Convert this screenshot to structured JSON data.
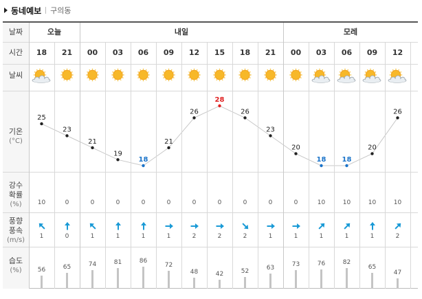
{
  "header": {
    "title": "동네예보",
    "location": "구의동"
  },
  "labels": {
    "date": "날짜",
    "time": "시간",
    "weather": "날씨",
    "temp": "기온",
    "temp_unit": "(°C)",
    "precip_1": "강수",
    "precip_2": "확률",
    "precip_unit": "(%)",
    "wind_1": "풍향",
    "wind_2": "풍속",
    "wind_unit": "(m/s)",
    "hum": "습도",
    "hum_unit": "(%)"
  },
  "days": [
    "오늘",
    "내일",
    "모레"
  ],
  "forecast": [
    {
      "time": "18",
      "icon": "partly-cloudy-icon",
      "temp": 25,
      "precip": 10,
      "wind_dir": "SE",
      "wind_speed": 1,
      "humidity": 56
    },
    {
      "time": "21",
      "icon": "sunny-icon",
      "temp": 23,
      "precip": 0,
      "wind_dir": "S",
      "wind_speed": 0,
      "humidity": 65
    },
    {
      "time": "00",
      "icon": "sunny-icon",
      "temp": 21,
      "precip": 0,
      "wind_dir": "SE",
      "wind_speed": 1,
      "humidity": 74
    },
    {
      "time": "03",
      "icon": "sunny-icon",
      "temp": 19,
      "precip": 0,
      "wind_dir": "S",
      "wind_speed": 1,
      "humidity": 81
    },
    {
      "time": "06",
      "icon": "sunny-icon",
      "temp": 18,
      "precip": 0,
      "wind_dir": "S",
      "wind_speed": 1,
      "humidity": 86
    },
    {
      "time": "09",
      "icon": "sunny-icon",
      "temp": 21,
      "precip": 0,
      "wind_dir": "W",
      "wind_speed": 1,
      "humidity": 72
    },
    {
      "time": "12",
      "icon": "sunny-icon",
      "temp": 26,
      "precip": 0,
      "wind_dir": "W",
      "wind_speed": 2,
      "humidity": 48
    },
    {
      "time": "15",
      "icon": "sunny-icon",
      "temp": 28,
      "precip": 0,
      "wind_dir": "W",
      "wind_speed": 2,
      "humidity": 42
    },
    {
      "time": "18",
      "icon": "sunny-icon",
      "temp": 26,
      "precip": 0,
      "wind_dir": "NW",
      "wind_speed": 2,
      "humidity": 52
    },
    {
      "time": "21",
      "icon": "sunny-icon",
      "temp": 23,
      "precip": 0,
      "wind_dir": "W",
      "wind_speed": 1,
      "humidity": 63
    },
    {
      "time": "00",
      "icon": "sunny-icon",
      "temp": 20,
      "precip": 0,
      "wind_dir": "W",
      "wind_speed": 1,
      "humidity": 73
    },
    {
      "time": "03",
      "icon": "partly-cloudy-icon",
      "temp": 18,
      "precip": 10,
      "wind_dir": "SW",
      "wind_speed": 1,
      "humidity": 76
    },
    {
      "time": "06",
      "icon": "partly-cloudy-icon",
      "temp": 18,
      "precip": 10,
      "wind_dir": "SW",
      "wind_speed": 1,
      "humidity": 82
    },
    {
      "time": "09",
      "icon": "partly-cloudy-icon",
      "temp": 20,
      "precip": 10,
      "wind_dir": "S",
      "wind_speed": 1,
      "humidity": 65
    },
    {
      "time": "12",
      "icon": "partly-cloudy-icon",
      "temp": 26,
      "precip": 10,
      "wind_dir": "SW",
      "wind_speed": 2,
      "humidity": 47
    }
  ],
  "colors": {
    "max": "#e02020",
    "min": "#1a73c9",
    "normal": "#222222",
    "line": "#c8c8c8",
    "arrow": "#1a9ad6"
  },
  "chart_data": {
    "type": "line",
    "x": [
      "18",
      "21",
      "00",
      "03",
      "06",
      "09",
      "12",
      "15",
      "18",
      "21",
      "00",
      "03",
      "06",
      "09",
      "12"
    ],
    "series": [
      {
        "values": [
          25,
          23,
          21,
          19,
          18,
          21,
          26,
          28,
          26,
          23,
          20,
          18,
          18,
          20,
          26
        ]
      }
    ],
    "ylabel": "기온 (°C)"
  }
}
